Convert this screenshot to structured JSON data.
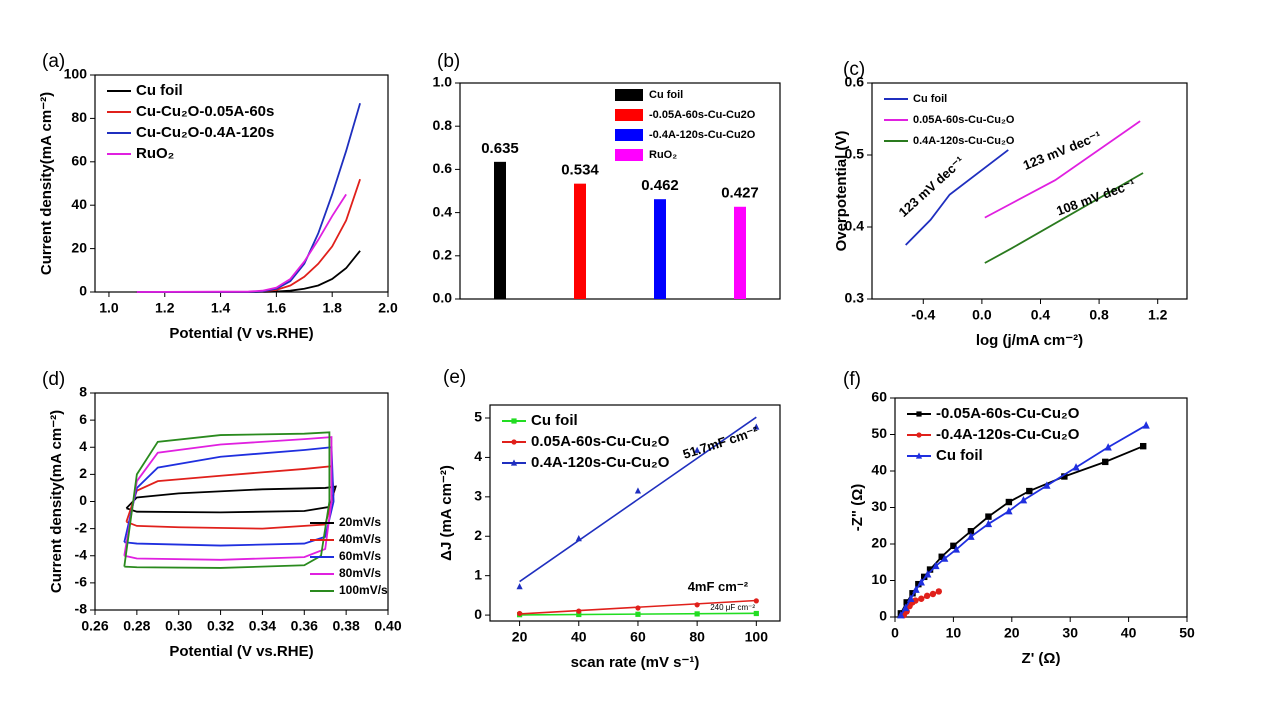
{
  "chart_data": [
    {
      "panel_label": "(a)",
      "type": "line",
      "xlabel": "Potential (V vs.RHE)",
      "ylabel": "Current density(mA cm⁻²)",
      "xlim": [
        0.95,
        2.0
      ],
      "xticks": [
        {
          "value": 1,
          "label": "1.0"
        },
        1.2,
        1.4,
        1.6,
        1.8,
        {
          "value": 2,
          "label": "2.0"
        }
      ],
      "ylim": [
        0,
        100
      ],
      "yticks": [
        0,
        20,
        40,
        60,
        80,
        100
      ],
      "legend": "upper left",
      "series": [
        {
          "name": "Cu foil",
          "color": "#000000",
          "x": [
            1.1,
            1.5,
            1.6,
            1.65,
            1.7,
            1.75,
            1.8,
            1.85,
            1.9
          ],
          "values": [
            0,
            0,
            0.2,
            0.6,
            1.5,
            3,
            6,
            11,
            19
          ]
        },
        {
          "name": "Cu-Cu₂O-0.05A-60s",
          "color": "#e0201b",
          "x": [
            1.1,
            1.5,
            1.55,
            1.6,
            1.65,
            1.7,
            1.75,
            1.8,
            1.85,
            1.9
          ],
          "values": [
            0,
            0,
            0.3,
            1,
            3,
            7,
            13,
            21,
            33,
            52
          ]
        },
        {
          "name": "Cu-Cu₂O-0.4A-120s",
          "color": "#1f2fbf",
          "x": [
            1.1,
            1.5,
            1.55,
            1.6,
            1.65,
            1.7,
            1.75,
            1.8,
            1.85,
            1.9
          ],
          "values": [
            0,
            0,
            0.3,
            1.5,
            5,
            13,
            27,
            45,
            65,
            87
          ]
        },
        {
          "name": "RuO₂",
          "color": "#e020e0",
          "x": [
            1.1,
            1.5,
            1.55,
            1.6,
            1.65,
            1.7,
            1.75,
            1.8,
            1.85
          ],
          "values": [
            0,
            0.2,
            0.6,
            2,
            6,
            14,
            24,
            35,
            45
          ]
        }
      ]
    },
    {
      "panel_label": "(b)",
      "type": "bar",
      "categories": [
        "Cu foil",
        "-0.05A-60s-Cu-Cu2O",
        "-0.4A-120s-Cu-Cu2O",
        "RuO₂"
      ],
      "values": [
        0.635,
        0.534,
        0.462,
        0.427
      ],
      "colors": [
        "#000000",
        "#ff0000",
        "#0000ff",
        "#ff00ff"
      ],
      "ylim": [
        0,
        1
      ],
      "yticks": [
        {
          "value": 0,
          "label": "0.0"
        },
        0.2,
        0.4,
        0.6,
        0.8,
        {
          "value": 1,
          "label": "1.0"
        }
      ],
      "legend": "upper right"
    },
    {
      "panel_label": "(c)",
      "type": "line",
      "xlabel": "log (j/mA cm⁻²)",
      "ylabel": "Overpotential (V)",
      "xlim": [
        -0.75,
        1.4
      ],
      "xticks": [
        -0.4,
        {
          "value": 0,
          "label": "0.0"
        },
        0.4,
        0.8,
        1.2
      ],
      "ylim": [
        0.3,
        0.6
      ],
      "yticks": [
        0.3,
        0.4,
        0.5,
        0.6
      ],
      "legend": "upper left",
      "series": [
        {
          "name": "Cu foil",
          "color": "#1f2fbf",
          "x": [
            -0.52,
            -0.35,
            -0.22,
            0.18
          ],
          "values": [
            0.375,
            0.41,
            0.445,
            0.507
          ]
        },
        {
          "name": "0.05A-60s-Cu-Cu₂O",
          "color": "#e020e0",
          "x": [
            0.02,
            0.5,
            1.08
          ],
          "values": [
            0.413,
            0.465,
            0.547
          ]
        },
        {
          "name": "0.4A-120s-Cu-Cu₂O",
          "color": "#2a7a1e",
          "x": [
            0.02,
            0.2,
            1.1
          ],
          "values": [
            0.35,
            0.37,
            0.475
          ]
        }
      ],
      "annotations": [
        {
          "text": "123 mV dec⁻¹",
          "x": -0.34,
          "y": 0.455
        },
        {
          "text": "123 mV dec⁻¹",
          "x": 0.55,
          "y": 0.505
        },
        {
          "text": "108 mV dec⁻¹",
          "x": 0.78,
          "y": 0.44
        }
      ]
    },
    {
      "panel_label": "(d)",
      "type": "line",
      "xlabel": "Potential (V vs.RHE)",
      "ylabel": "Current density(mA cm⁻²)",
      "xlim": [
        0.26,
        0.4
      ],
      "xticks": [
        0.26,
        0.28,
        {
          "value": 0.3,
          "label": "0.30"
        },
        0.32,
        0.34,
        0.36,
        0.38,
        {
          "value": 0.4,
          "label": "0.40"
        }
      ],
      "ylim": [
        -8,
        8
      ],
      "yticks": [
        -8,
        -6,
        -4,
        -2,
        0,
        2,
        4,
        6,
        8
      ],
      "legend": "lower right",
      "series": [
        {
          "name": "20mV/s",
          "color": "#000000",
          "x": [
            0.275,
            0.28,
            0.3,
            0.34,
            0.37,
            0.375,
            0.372,
            0.36,
            0.32,
            0.28,
            0.275
          ],
          "values": [
            -0.5,
            0.3,
            0.6,
            0.9,
            1,
            1.1,
            -0.4,
            -0.7,
            -0.8,
            -0.75,
            -0.5
          ]
        },
        {
          "name": "40mV/s",
          "color": "#e0201b",
          "x": [
            0.275,
            0.28,
            0.29,
            0.32,
            0.36,
            0.373,
            0.374,
            0.37,
            0.34,
            0.3,
            0.28,
            0.275
          ],
          "values": [
            -1.5,
            0.8,
            1.5,
            1.9,
            2.4,
            2.6,
            0.5,
            -1.7,
            -2,
            -1.9,
            -1.8,
            -1.5
          ]
        },
        {
          "name": "60mV/s",
          "color": "#1f2fdf",
          "x": [
            0.274,
            0.28,
            0.29,
            0.32,
            0.36,
            0.373,
            0.374,
            0.37,
            0.36,
            0.32,
            0.28,
            0.274
          ],
          "values": [
            -3,
            1,
            2.5,
            3.3,
            3.8,
            4,
            0,
            -2.6,
            -3.1,
            -3.25,
            -3.1,
            -3
          ]
        },
        {
          "name": "80mV/s",
          "color": "#e020e0",
          "x": [
            0.274,
            0.28,
            0.29,
            0.32,
            0.36,
            0.373,
            0.373,
            0.37,
            0.36,
            0.32,
            0.28,
            0.274
          ],
          "values": [
            -4,
            1.5,
            3.6,
            4.2,
            4.6,
            4.75,
            0,
            -3.5,
            -4.1,
            -4.3,
            -4.2,
            -4
          ]
        },
        {
          "name": "100mV/s",
          "color": "#2a8a1e",
          "x": [
            0.274,
            0.28,
            0.29,
            0.32,
            0.36,
            0.372,
            0.372,
            0.368,
            0.36,
            0.32,
            0.28,
            0.274
          ],
          "values": [
            -4.8,
            2,
            4.4,
            4.9,
            5,
            5.1,
            0,
            -4,
            -4.7,
            -4.9,
            -4.85,
            -4.8
          ]
        }
      ]
    },
    {
      "panel_label": "(e)",
      "type": "scatter",
      "xlabel": "scan rate (mV s⁻¹)",
      "ylabel": "ΔJ (mA cm⁻²)",
      "xlim": [
        10,
        108
      ],
      "xticks": [
        20,
        40,
        60,
        80,
        100
      ],
      "ylim": [
        -0.15,
        5.33
      ],
      "yticks": [
        0,
        1,
        2,
        3,
        4,
        5
      ],
      "legend": "upper left",
      "x": [
        20,
        40,
        60,
        80,
        100
      ],
      "series": [
        {
          "name": "Cu foil",
          "color": "#22dd22",
          "marker": "square",
          "values": [
            0.01,
            0.015,
            0.02,
            0.03,
            0.04
          ],
          "fit": [
            0.005,
            0.045
          ]
        },
        {
          "name": "0.05A-60s-Cu-Cu₂O",
          "color": "#e0201b",
          "marker": "circle",
          "values": [
            0.04,
            0.1,
            0.18,
            0.26,
            0.36
          ],
          "fit": [
            0.03,
            0.37
          ]
        },
        {
          "name": "0.4A-120s-Cu-Cu₂O",
          "color": "#1f2fbf",
          "marker": "triangle",
          "values": [
            0.72,
            1.94,
            3.15,
            4.18,
            4.77
          ],
          "fit": [
            0.85,
            5.02
          ]
        }
      ],
      "annotations": [
        {
          "text": "51.7mF cm⁻²",
          "x": 88,
          "y": 4.35
        },
        {
          "text": "4mF cm⁻²",
          "x": 87,
          "y": 0.7
        },
        {
          "text": "240 μF cm⁻²",
          "x": 92,
          "y": 0.18
        }
      ]
    },
    {
      "panel_label": "(f)",
      "type": "line",
      "xlabel": "Z' (Ω)",
      "ylabel": "-Z\" (Ω)",
      "xlim": [
        0,
        50
      ],
      "xticks": [
        0,
        10,
        20,
        30,
        40,
        50
      ],
      "ylim": [
        0,
        60
      ],
      "yticks": [
        0,
        10,
        20,
        30,
        40,
        50,
        60
      ],
      "legend": "upper left",
      "series": [
        {
          "name": "-0.05A-60s-Cu-Cu₂O",
          "color": "#000000",
          "marker": "square",
          "x": [
            1,
            2,
            3,
            4,
            5,
            6,
            8,
            10,
            13,
            16,
            19.5,
            23,
            29,
            36,
            42.5
          ],
          "values": [
            1,
            4,
            6.5,
            9,
            11,
            13,
            16.5,
            19.5,
            23.5,
            27.5,
            31.5,
            34.5,
            38.5,
            42.5,
            46.8
          ]
        },
        {
          "name": "-0.4A-120s-Cu-Cu₂O",
          "color": "#e0201b",
          "marker": "circle",
          "x": [
            1.5,
            2,
            2.5,
            3,
            3.5,
            4.5,
            5.5,
            6.5,
            7.5
          ],
          "values": [
            0.5,
            1.5,
            3,
            4,
            4.5,
            5,
            5.8,
            6.3,
            7
          ]
        },
        {
          "name": "Cu foil",
          "color": "#1f2fdf",
          "marker": "triangle",
          "x": [
            1,
            1.8,
            2.7,
            3.6,
            4.5,
            5.6,
            7,
            8.5,
            10.5,
            13,
            16,
            19.5,
            22,
            26,
            31,
            36.5,
            43
          ],
          "values": [
            0.5,
            2.5,
            5,
            7.5,
            9.5,
            11.7,
            14,
            16,
            18.5,
            22,
            25.5,
            29,
            32,
            36,
            41,
            46.5,
            52.5
          ]
        }
      ]
    }
  ]
}
